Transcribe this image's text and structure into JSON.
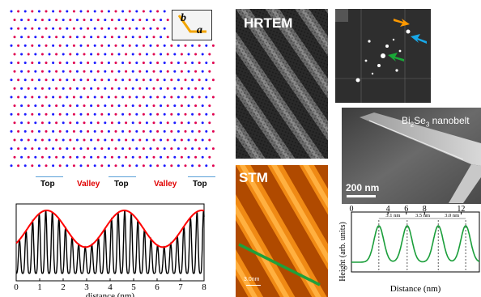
{
  "lattice": {
    "inset_b": "b",
    "inset_a": "a",
    "region_labels": [
      "Top",
      "Valley",
      "Top",
      "Valley",
      "Top"
    ],
    "colors": {
      "dot_blue": "#1a1aff",
      "dot_red": "#e0004f",
      "region_line": "#5aa0d8",
      "top_text": "#000000",
      "valley_text": "#e00000",
      "inset_arrow": "#f2a400"
    }
  },
  "profile_chart": {
    "chart_data": {
      "type": "line",
      "xlabel": "distance (nm)",
      "ylabel": "",
      "xlim": [
        0,
        8
      ],
      "x_ticks": [
        "0",
        "1",
        "2",
        "3",
        "4",
        "5",
        "6",
        "7",
        "8"
      ],
      "series": [
        {
          "name": "",
          "color": "#000000",
          "peak_period_nm": 0.28
        },
        {
          "name": "",
          "color": "#ff0000",
          "envelope_period_nm": 3.3,
          "envelope_max_at_nm": [
            1.3,
            4.6,
            7.9
          ]
        }
      ]
    }
  },
  "hrtem": {
    "title": "HRTEM"
  },
  "fft": {
    "arrows": {
      "orange": "#ff9900",
      "cyan": "#18a8e8",
      "green": "#1aa838"
    }
  },
  "sem": {
    "caption_pre": "Bi",
    "caption_sub1": "2",
    "caption_mid": "Se",
    "caption_sub2": "3",
    "caption_post": " nanobelt",
    "scale_label": "200 nm"
  },
  "stm": {
    "title": "STM",
    "scale_label": "3.0nm",
    "line_color": "#1fa03a"
  },
  "height_chart": {
    "chart_data": {
      "type": "line",
      "xlabel": "Distance (nm)",
      "ylabel": "Height (arb. units)",
      "xlim": [
        0,
        14
      ],
      "x_ticks": [
        "0",
        "4",
        "6",
        "8",
        "12"
      ],
      "period_labels": [
        "3.1 nm",
        "3.5 nm",
        "3.0 nm"
      ],
      "series": [
        {
          "name": "",
          "color": "#1a9e3a",
          "peaks_nm": [
            3.0,
            6.1,
            9.5,
            12.5
          ]
        }
      ]
    }
  }
}
